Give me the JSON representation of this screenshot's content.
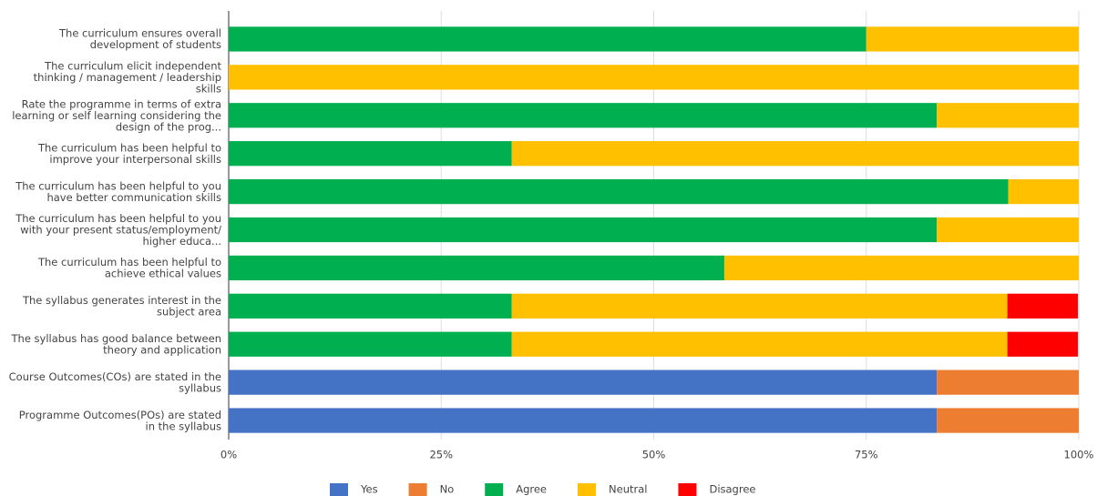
{
  "chart_data": {
    "type": "stacked-bar-horizontal",
    "categories": [
      "The curriculum ensures overall development of students",
      "The curriculum elicit independent thinking / management / leadership skills",
      "Rate the programme in terms of extra learning or self learning considering the design of the prog...",
      "The curriculum has been helpful to improve your interpersonal skills",
      "The curriculum has been helpful to you have better communication skills",
      "The curriculum has been helpful to you with your present status/employment/ higher educa...",
      "The curriculum has been helpful to achieve ethical values",
      "The syllabus generates interest in the subject area",
      "The syllabus has good balance between theory and application",
      "Course Outcomes(COs) are stated in the syllabus",
      "Programme Outcomes(POs) are stated in the syllabus"
    ],
    "series": [
      {
        "name": "Yes",
        "color": "#4472c4",
        "values": [
          0,
          0,
          0,
          0,
          0,
          0,
          0,
          0,
          0,
          83.3,
          83.3
        ]
      },
      {
        "name": "No",
        "color": "#ed7d31",
        "values": [
          0,
          0,
          0,
          0,
          0,
          0,
          0,
          0,
          0,
          16.7,
          16.7
        ]
      },
      {
        "name": "Agree",
        "color": "#00b050",
        "values": [
          75,
          0,
          83.3,
          33.3,
          91.7,
          83.3,
          58.3,
          33.3,
          33.3,
          0,
          0
        ]
      },
      {
        "name": "Neutral",
        "color": "#ffc000",
        "values": [
          25,
          100,
          16.7,
          66.7,
          8.3,
          16.7,
          41.7,
          58.3,
          58.3,
          0,
          0
        ]
      },
      {
        "name": "Disagree",
        "color": "#ff0000",
        "values": [
          0,
          0,
          0,
          0,
          0,
          0,
          0,
          8.3,
          8.3,
          0,
          0
        ]
      }
    ],
    "xlim": [
      0,
      100
    ],
    "xticks": [
      {
        "value": 0,
        "label": "0%"
      },
      {
        "value": 25,
        "label": "25%"
      },
      {
        "value": 50,
        "label": "50%"
      },
      {
        "value": 75,
        "label": "75%"
      },
      {
        "value": 100,
        "label": "100%"
      }
    ],
    "grid": true,
    "legend": "bottom"
  }
}
